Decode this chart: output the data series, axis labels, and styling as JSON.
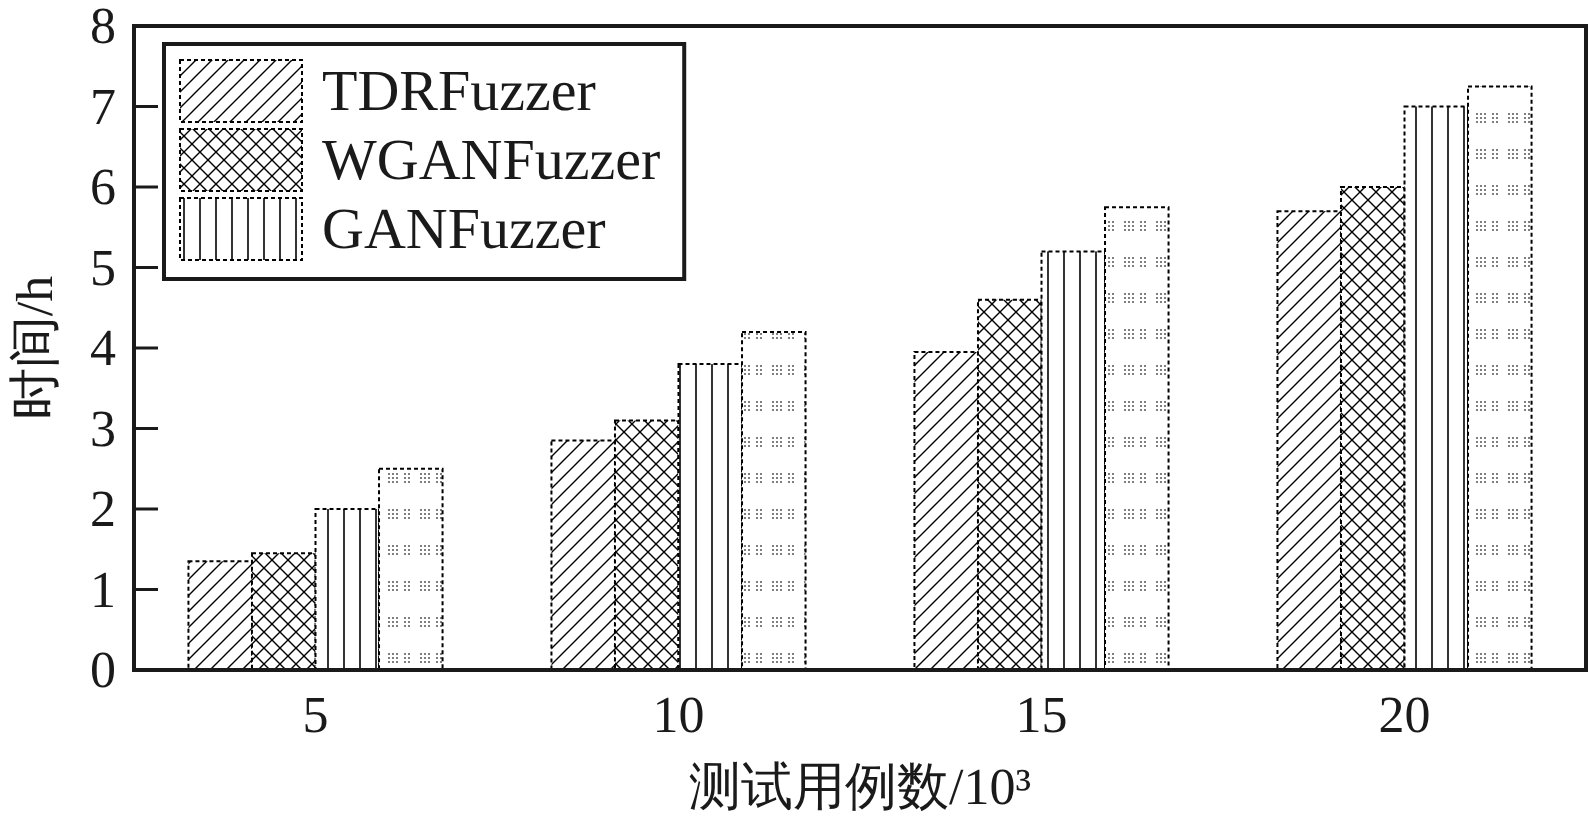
{
  "chart_data": {
    "type": "bar",
    "xlabel": "测试用例数/10³",
    "ylabel": "时间/h",
    "categories": [
      "5",
      "10",
      "15",
      "20"
    ],
    "series": [
      {
        "name": "TDRFuzzer",
        "color": "#000000",
        "values": [
          1.35,
          2.85,
          3.95,
          5.7
        ]
      },
      {
        "name": "WGANFuzzer",
        "color": "#000000",
        "values": [
          1.45,
          3.1,
          4.6,
          6.0
        ]
      },
      {
        "name": "GANFuzzer",
        "color": "#000000",
        "values": [
          2.0,
          3.8,
          5.2,
          7.0
        ]
      },
      {
        "color": "#000000",
        "values": [
          2.5,
          4.2,
          5.75,
          7.25
        ]
      }
    ],
    "ylim": [
      0,
      8
    ],
    "yticks": [
      0,
      1,
      2,
      3,
      4,
      5,
      6,
      7,
      8
    ],
    "legend": "top left"
  }
}
